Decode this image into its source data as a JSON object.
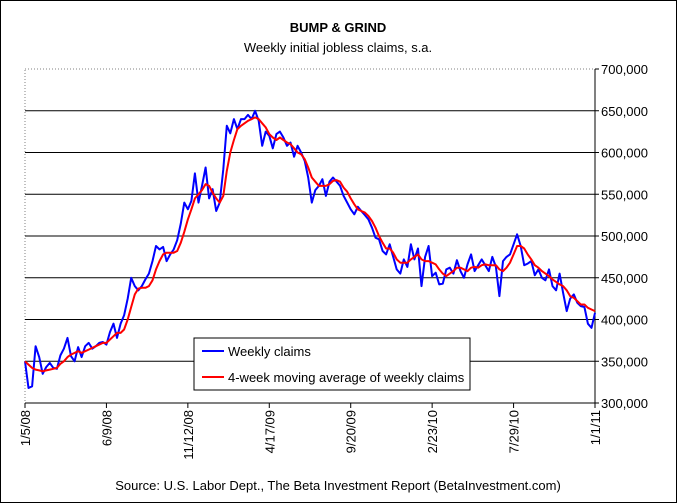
{
  "chart_data": {
    "type": "line",
    "title": "BUMP & GRIND",
    "subtitle": "Weekly initial jobless claims, s.a.",
    "source": "Source: U.S. Labor Dept., The Beta Investment Report (BetaInvestment.com)",
    "xlabel": "",
    "ylabel": "",
    "x_tick_labels": [
      "1/5/08",
      "6/9/08",
      "11/12/08",
      "4/17/09",
      "9/20/09",
      "2/23/10",
      "7/29/10",
      "1/1/11"
    ],
    "ylim": [
      300000,
      700000
    ],
    "y_ticks": [
      300000,
      350000,
      400000,
      450000,
      500000,
      550000,
      600000,
      650000,
      700000
    ],
    "y_tick_labels": [
      "300,000",
      "350,000",
      "400,000",
      "450,000",
      "500,000",
      "550,000",
      "600,000",
      "650,000",
      "700,000"
    ],
    "grid": "horizontal",
    "legend_position": "bottom-left",
    "series": [
      {
        "name": "Weekly claims",
        "color": "#0000ff",
        "values": [
          350000,
          318000,
          320000,
          368000,
          355000,
          335000,
          343000,
          348000,
          342000,
          341000,
          357000,
          365000,
          378000,
          356000,
          350000,
          367000,
          355000,
          368000,
          372000,
          365000,
          368000,
          372000,
          373000,
          370000,
          385000,
          395000,
          378000,
          395000,
          405000,
          425000,
          450000,
          440000,
          435000,
          440000,
          448000,
          455000,
          470000,
          488000,
          484000,
          487000,
          470000,
          478000,
          484000,
          495000,
          515000,
          540000,
          532000,
          542000,
          575000,
          540000,
          560000,
          582000,
          545000,
          556000,
          530000,
          540000,
          580000,
          632000,
          623000,
          640000,
          628000,
          640000,
          640000,
          645000,
          640000,
          650000,
          638000,
          608000,
          625000,
          620000,
          605000,
          622000,
          625000,
          618000,
          608000,
          612000,
          595000,
          608000,
          600000,
          590000,
          570000,
          540000,
          555000,
          560000,
          568000,
          548000,
          565000,
          570000,
          565000,
          560000,
          548000,
          540000,
          532000,
          526000,
          535000,
          530000,
          525000,
          520000,
          510000,
          498000,
          496000,
          482000,
          478000,
          490000,
          475000,
          460000,
          455000,
          472000,
          463000,
          490000,
          472000,
          485000,
          440000,
          475000,
          488000,
          452000,
          456000,
          442000,
          443000,
          460000,
          462000,
          455000,
          471000,
          458000,
          450000,
          466000,
          478000,
          458000,
          465000,
          472000,
          465000,
          458000,
          475000,
          463000,
          428000,
          470000,
          475000,
          478000,
          490000,
          502000,
          488000,
          465000,
          467000,
          470000,
          453000,
          460000,
          450000,
          447000,
          460000,
          440000,
          435000,
          455000,
          432000,
          410000,
          425000,
          430000,
          420000,
          416000,
          415000,
          395000,
          390000,
          408000
        ]
      },
      {
        "name": "4-week moving average of weekly claims",
        "color": "#ff0000",
        "values": [
          350000,
          346000,
          342000,
          340000,
          339000,
          338000,
          339000,
          340000,
          341000,
          342000,
          347000,
          350000,
          355000,
          358000,
          360000,
          362000,
          360000,
          362000,
          364000,
          366000,
          368000,
          370000,
          372000,
          372000,
          376000,
          380000,
          384000,
          384000,
          388000,
          400000,
          415000,
          430000,
          437000,
          438000,
          438000,
          440000,
          447000,
          460000,
          470000,
          478000,
          480000,
          480000,
          480000,
          482000,
          492000,
          505000,
          520000,
          532000,
          545000,
          550000,
          555000,
          562000,
          560000,
          552000,
          545000,
          540000,
          548000,
          578000,
          600000,
          615000,
          628000,
          632000,
          635000,
          638000,
          640000,
          642000,
          640000,
          635000,
          630000,
          622000,
          618000,
          615000,
          618000,
          615000,
          612000,
          610000,
          605000,
          600000,
          598000,
          592000,
          582000,
          570000,
          565000,
          560000,
          560000,
          560000,
          562000,
          566000,
          567000,
          565000,
          558000,
          553000,
          545000,
          538000,
          532000,
          530000,
          528000,
          524000,
          518000,
          510000,
          500000,
          492000,
          485000,
          485000,
          480000,
          472000,
          468000,
          468000,
          468000,
          472000,
          475000,
          478000,
          472000,
          470000,
          470000,
          468000,
          466000,
          460000,
          455000,
          452000,
          455000,
          458000,
          462000,
          462000,
          460000,
          458000,
          462000,
          463000,
          462000,
          465000,
          466000,
          465000,
          465000,
          465000,
          460000,
          458000,
          462000,
          468000,
          478000,
          488000,
          488000,
          485000,
          478000,
          472000,
          465000,
          462000,
          458000,
          455000,
          452000,
          448000,
          445000,
          442000,
          440000,
          435000,
          428000,
          426000,
          422000,
          418000,
          418000,
          414000,
          412000,
          410000
        ]
      }
    ]
  }
}
